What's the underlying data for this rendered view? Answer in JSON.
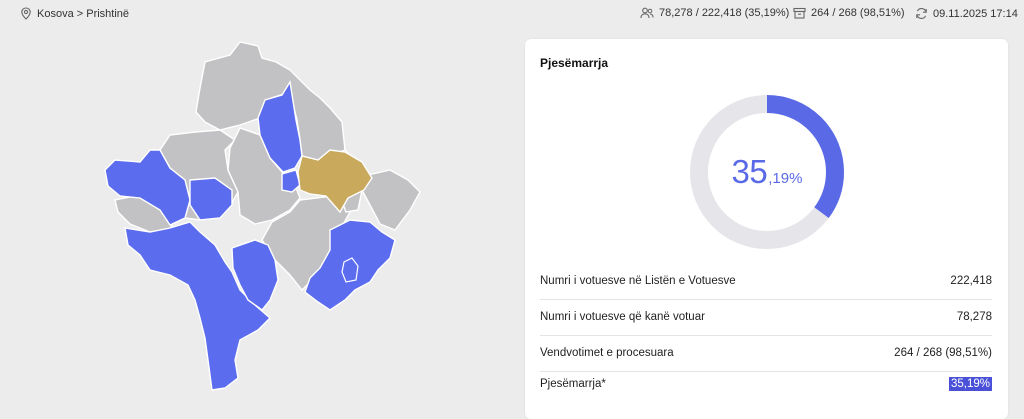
{
  "breadcrumb": "Kosova > Prishtinë",
  "stats": {
    "voters": "78,278 / 222,418 (35,19%)",
    "stations": "264 / 268 (98,51%)",
    "updated": "09.11.2025 17:14"
  },
  "icons": [
    "location-pin-icon",
    "people-icon",
    "ballot-box-icon",
    "refresh-icon"
  ],
  "colors": {
    "accent": "#5a6ae6",
    "selected_municipality": "#c9a95c",
    "highlighted_municipality": "#5b6cef",
    "other_municipality": "#c2c2c4"
  },
  "panel": {
    "title": "Pjesëmarrja",
    "turnout_fraction": 0.3519,
    "turnout_int": "35",
    "turnout_dec": ",19%",
    "rows": [
      {
        "label": "Numri i votuesve në Listën e Votuesve",
        "value": "222,418"
      },
      {
        "label": "Numri i votuesve që kanë votuar",
        "value": "78,278"
      },
      {
        "label": "Vendvotimet e procesuara",
        "value": "264 / 268 (98,51%)"
      },
      {
        "label": "Pjesëmarrja*",
        "value": "35,19%"
      }
    ]
  }
}
